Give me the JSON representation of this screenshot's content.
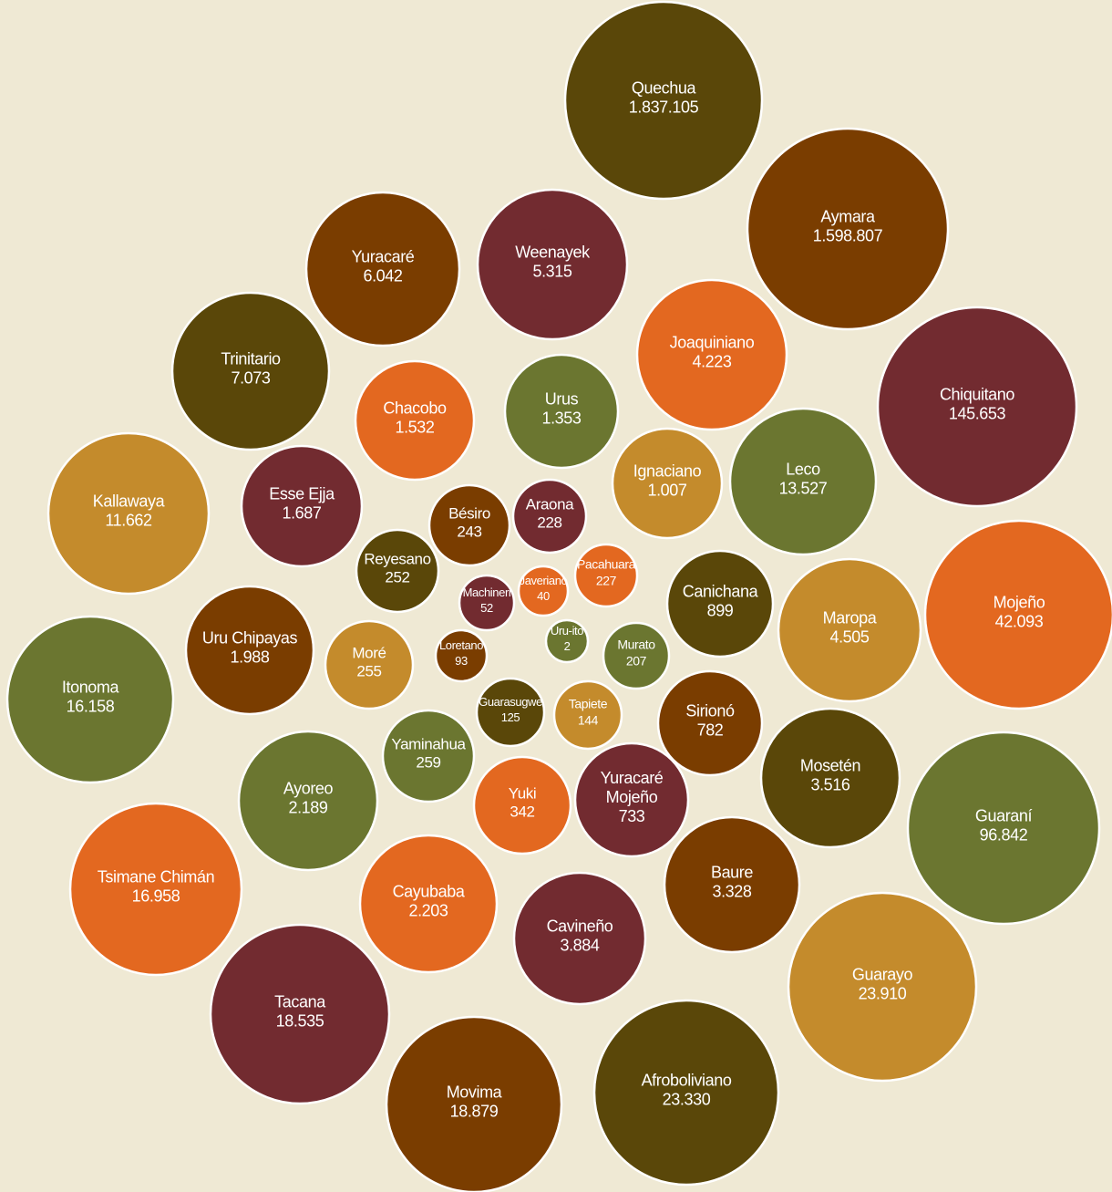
{
  "colors": {
    "background": "#efe9d4",
    "dark_olive": "#5a4709",
    "brown": "#7a3d00",
    "wine": "#722b30",
    "orange": "#e36820",
    "green": "#6b7630",
    "ochre": "#c48b2c",
    "bubble_outline": "#ffffff",
    "label": "#ffffff"
  },
  "chart_data": {
    "type": "bubble",
    "title": "",
    "bubbles": [
      {
        "name": "Quechua",
        "value": "1.837.105",
        "color": "dark_olive"
      },
      {
        "name": "Aymara",
        "value": "1.598.807",
        "color": "brown"
      },
      {
        "name": "Yuracaré",
        "value": "6.042",
        "color": "brown"
      },
      {
        "name": "Weenayek",
        "value": "5.315",
        "color": "wine"
      },
      {
        "name": "Joaquiniano",
        "value": "4.223",
        "color": "orange"
      },
      {
        "name": "Trinitario",
        "value": "7.073",
        "color": "dark_olive"
      },
      {
        "name": "Chiquitano",
        "value": "145.653",
        "color": "wine"
      },
      {
        "name": "Chacobo",
        "value": "1.532",
        "color": "orange"
      },
      {
        "name": "Urus",
        "value": "1.353",
        "color": "green"
      },
      {
        "name": "Ignaciano",
        "value": "1.007",
        "color": "ochre"
      },
      {
        "name": "Leco",
        "value": "13.527",
        "color": "green"
      },
      {
        "name": "Kallawaya",
        "value": "11.662",
        "color": "ochre"
      },
      {
        "name": "Esse Ejja",
        "value": "1.687",
        "color": "wine"
      },
      {
        "name": "Bésiro",
        "value": "243",
        "color": "brown"
      },
      {
        "name": "Araona",
        "value": "228",
        "color": "wine"
      },
      {
        "name": "Reyesano",
        "value": "252",
        "color": "dark_olive"
      },
      {
        "name": "Pacahuara",
        "value": "227",
        "color": "orange"
      },
      {
        "name": "Javeriano",
        "value": "40",
        "color": "orange"
      },
      {
        "name": "Machineri",
        "value": "52",
        "color": "wine"
      },
      {
        "name": "Canichana",
        "value": "899",
        "color": "dark_olive"
      },
      {
        "name": "Maropa",
        "value": "4.505",
        "color": "ochre"
      },
      {
        "name": "Mojeño",
        "value": "42.093",
        "color": "orange"
      },
      {
        "name": "Uru Chipayas",
        "value": "1.988",
        "color": "brown"
      },
      {
        "name": "Moré",
        "value": "255",
        "color": "ochre"
      },
      {
        "name": "Loretano",
        "value": "93",
        "color": "brown"
      },
      {
        "name": "Uru-ito",
        "value": "2",
        "color": "green"
      },
      {
        "name": "Murato",
        "value": "207",
        "color": "green"
      },
      {
        "name": "Itonoma",
        "value": "16.158",
        "color": "green"
      },
      {
        "name": "Guarasugwe",
        "value": "125",
        "color": "dark_olive"
      },
      {
        "name": "Tapiete",
        "value": "144",
        "color": "ochre"
      },
      {
        "name": "Sirionó",
        "value": "782",
        "color": "brown"
      },
      {
        "name": "Yaminahua",
        "value": "259",
        "color": "green"
      },
      {
        "name": "Mosetén",
        "value": "3.516",
        "color": "dark_olive"
      },
      {
        "name": "Ayoreo",
        "value": "2.189",
        "color": "green"
      },
      {
        "name": "Yuki",
        "value": "342",
        "color": "orange"
      },
      {
        "name": "Yuracaré Mojeño",
        "value": "733",
        "color": "wine"
      },
      {
        "name": "Guaraní",
        "value": "96.842",
        "color": "green"
      },
      {
        "name": "Tsimane Chimán",
        "value": "16.958",
        "color": "orange"
      },
      {
        "name": "Cayubaba",
        "value": "2.203",
        "color": "orange"
      },
      {
        "name": "Baure",
        "value": "3.328",
        "color": "brown"
      },
      {
        "name": "Cavineño",
        "value": "3.884",
        "color": "wine"
      },
      {
        "name": "Guarayo",
        "value": "23.910",
        "color": "ochre"
      },
      {
        "name": "Tacana",
        "value": "18.535",
        "color": "wine"
      },
      {
        "name": "Afroboliviano",
        "value": "23.330",
        "color": "dark_olive"
      },
      {
        "name": "Movima",
        "value": "18.879",
        "color": "brown"
      }
    ]
  }
}
